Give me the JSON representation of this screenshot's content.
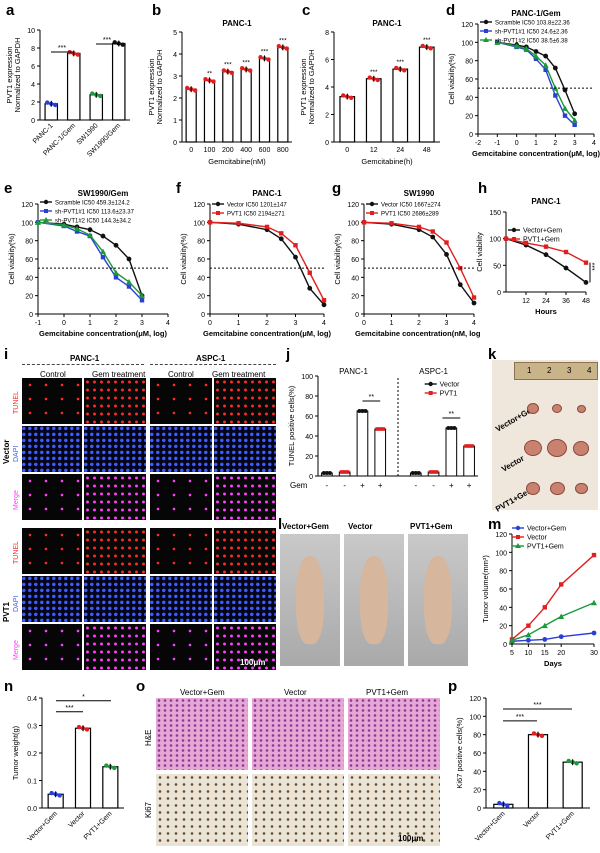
{
  "panels": {
    "a": {
      "label": "a",
      "ylabel": "PVT1 expression\nNormalized to GAPDH",
      "yticks": [
        "0",
        "2",
        "4",
        "6",
        "8",
        "10"
      ],
      "categories": [
        "PANC-1",
        "PANC-1/Gem",
        "SW1990",
        "SW1990/Gem"
      ],
      "sig": [
        "***",
        "***"
      ]
    },
    "b": {
      "label": "b",
      "title": "PANC-1",
      "ylabel": "PVT1 expression\nNormalized to GAPDH",
      "xlabel": "Gemcitabine(nM)",
      "yticks": [
        "0",
        "1",
        "2",
        "3",
        "4",
        "5"
      ],
      "categories": [
        "0",
        "100",
        "200",
        "400",
        "600",
        "800"
      ],
      "sig": [
        "**",
        "***",
        "***",
        "***",
        "***"
      ]
    },
    "c": {
      "label": "c",
      "title": "PANC-1",
      "ylabel": "PVT1 expression\nNormalized to GAPDH",
      "xlabel": "Gemcitabine(h)",
      "yticks": [
        "0",
        "2",
        "4",
        "6",
        "8"
      ],
      "categories": [
        "0",
        "12",
        "24",
        "48"
      ],
      "sig": [
        "***",
        "***",
        "***"
      ]
    },
    "d": {
      "label": "d",
      "title": "PANC-1/Gem",
      "ylabel": "Cell viability(%)",
      "xlabel": "Gemcitabine concentration(μM, log)",
      "yticks": [
        "0",
        "20",
        "40",
        "60",
        "80",
        "100",
        "120"
      ],
      "xticks": [
        "-2",
        "-1",
        "0",
        "1",
        "2",
        "3",
        "4"
      ],
      "legend": [
        "Scramble  IC50 103.8±22.36",
        "sh-PVT1#1 IC50 24.6±2.36",
        "sh-PVT1#2 IC50 38.5±6.38"
      ]
    },
    "e": {
      "label": "e",
      "title": "SW1990/Gem",
      "ylabel": "Cell viability(%)",
      "xlabel": "Gemcitabine concentration(μM, log)",
      "yticks": [
        "0",
        "20",
        "40",
        "60",
        "80",
        "100",
        "120"
      ],
      "xticks": [
        "-1",
        "0",
        "1",
        "2",
        "3",
        "4"
      ],
      "legend": [
        "Scramble  IC50 459.3±124.2",
        "sh-PVT1#1 IC50 113.6±23.37",
        "sh-PVT1#2 IC50 144.3±34.2"
      ]
    },
    "f": {
      "label": "f",
      "title": "PANC-1",
      "ylabel": "Cell viability(%)",
      "xlabel": "Gemcitabine concentration(μM, log)",
      "yticks": [
        "0",
        "20",
        "40",
        "60",
        "80",
        "100",
        "120"
      ],
      "xticks": [
        "0",
        "1",
        "2",
        "3",
        "4"
      ],
      "legend": [
        "Vector  IC50 1201±147",
        "PVT1    IC50 2194±271"
      ]
    },
    "g": {
      "label": "g",
      "title": "SW1990",
      "ylabel": "Cell viability(%)",
      "xlabel": "Gemcitabine concentration(nM, log)",
      "yticks": [
        "0",
        "20",
        "40",
        "60",
        "80",
        "100",
        "120"
      ],
      "xticks": [
        "0",
        "1",
        "2",
        "3",
        "4"
      ],
      "legend": [
        "Vector  IC50 1667±274",
        "PVT1    IC50 2686±289"
      ]
    },
    "h": {
      "label": "h",
      "title": "PANC-1",
      "ylabel": "Cell viability",
      "xlabel": "Hours",
      "yticks": [
        "0",
        "50",
        "100",
        "150"
      ],
      "xticks": [
        "12",
        "24",
        "36",
        "48"
      ],
      "legend": [
        "Vector+Gem",
        "PVT1+Gem"
      ],
      "sig": "***"
    },
    "i": {
      "label": "i",
      "groups": [
        "PANC-1",
        "ASPC-1"
      ],
      "cols": [
        "Control",
        "Gem treatment",
        "Control",
        "Gem treatment"
      ],
      "rowgroups": [
        "Vector",
        "PVT1"
      ],
      "stains": [
        "TUNEL",
        "DAPI",
        "Merge"
      ],
      "scale": "100μm"
    },
    "j": {
      "label": "j",
      "groups": [
        "PANC-1",
        "ASPC-1"
      ],
      "ylabel": "TUNEL positive cells(%)",
      "yticks": [
        "0",
        "20",
        "40",
        "60",
        "80",
        "100"
      ],
      "legend": [
        "Vector",
        "PVT1"
      ],
      "gem_row_label": "Gem",
      "gem": [
        "-",
        "-",
        "+",
        "+",
        "-",
        "-",
        "+",
        "+"
      ],
      "sig": [
        "**",
        "**"
      ]
    },
    "k": {
      "label": "k",
      "rows": [
        "Vector+Gem",
        "Vector",
        "PVT1+Gem"
      ],
      "ruler": [
        "1",
        "2",
        "3",
        "4"
      ]
    },
    "l": {
      "label": "l",
      "cols": [
        "Vector+Gem",
        "Vector",
        "PVT1+Gem"
      ]
    },
    "m": {
      "label": "m",
      "ylabel": "Tumor volume(mm³)",
      "xlabel": "Days",
      "yticks": [
        "0",
        "20",
        "40",
        "60",
        "80",
        "100",
        "120"
      ],
      "xticks": [
        "5",
        "10",
        "15",
        "20",
        "30"
      ],
      "legend": [
        "Vector+Gem",
        "Vector",
        "PVT1+Gem"
      ]
    },
    "n": {
      "label": "n",
      "ylabel": "Tumor weight(g)",
      "yticks": [
        "0.0",
        "0.1",
        "0.2",
        "0.3",
        "0.4"
      ],
      "categories": [
        "Vector+Gem",
        "Vector",
        "PVT1+Gem"
      ],
      "sig": [
        "***",
        "*"
      ]
    },
    "o": {
      "label": "o",
      "cols": [
        "Vector+Gem",
        "Vector",
        "PVT1+Gem"
      ],
      "rows": [
        "H&E",
        "Ki67"
      ],
      "scale": "100μm"
    },
    "p": {
      "label": "p",
      "ylabel": "Ki67 positive cells(%)",
      "yticks": [
        "0",
        "20",
        "40",
        "60",
        "80",
        "100",
        "120"
      ],
      "categories": [
        "Vector+Gem",
        "Vector",
        "PVT1+Gem"
      ],
      "sig": [
        "***",
        "***"
      ]
    }
  },
  "colors": {
    "black": "#111111",
    "red": "#e02020",
    "blue": "#2a3fd6",
    "green": "#1a9a3a",
    "grey": "#888888"
  },
  "chart_data": [
    {
      "type": "bar",
      "panel": "a",
      "categories": [
        "PANC-1",
        "PANC-1/Gem",
        "SW1990",
        "SW1990/Gem"
      ],
      "values": [
        1.8,
        7.4,
        2.8,
        8.5
      ],
      "ylim": [
        0,
        10
      ]
    },
    {
      "type": "bar",
      "panel": "b",
      "categories": [
        "0",
        "100",
        "200",
        "400",
        "600",
        "800"
      ],
      "values": [
        2.4,
        2.8,
        3.2,
        3.3,
        3.8,
        4.3
      ],
      "ylim": [
        0,
        5
      ]
    },
    {
      "type": "bar",
      "panel": "c",
      "categories": [
        "0",
        "12",
        "24",
        "48"
      ],
      "values": [
        3.3,
        4.6,
        5.3,
        6.9
      ],
      "ylim": [
        0,
        8
      ]
    },
    {
      "type": "line",
      "panel": "d",
      "x": [
        -1,
        0,
        0.5,
        1,
        1.5,
        2,
        2.5,
        3
      ],
      "series": [
        {
          "name": "Scramble",
          "values": [
            100,
            97,
            95,
            90,
            85,
            72,
            48,
            22
          ]
        },
        {
          "name": "sh-PVT1#1",
          "values": [
            100,
            95,
            92,
            82,
            70,
            42,
            20,
            10
          ]
        },
        {
          "name": "sh-PVT1#2",
          "values": [
            100,
            96,
            93,
            85,
            75,
            50,
            28,
            15
          ]
        }
      ],
      "ylim": [
        0,
        120
      ]
    },
    {
      "type": "line",
      "panel": "e",
      "x": [
        -1,
        0,
        0.5,
        1,
        1.5,
        2,
        2.5,
        3
      ],
      "series": [
        {
          "name": "Scramble",
          "values": [
            100,
            98,
            95,
            92,
            85,
            75,
            60,
            20
          ]
        },
        {
          "name": "sh-PVT1#1",
          "values": [
            100,
            96,
            90,
            85,
            62,
            40,
            30,
            15
          ]
        },
        {
          "name": "sh-PVT1#2",
          "values": [
            100,
            97,
            93,
            86,
            68,
            45,
            35,
            20
          ]
        }
      ],
      "ylim": [
        0,
        120
      ]
    },
    {
      "type": "line",
      "panel": "f",
      "x": [
        0,
        1,
        2,
        2.5,
        3,
        3.5,
        4
      ],
      "series": [
        {
          "name": "Vector",
          "values": [
            100,
            98,
            92,
            82,
            62,
            28,
            10
          ]
        },
        {
          "name": "PVT1",
          "values": [
            100,
            99,
            95,
            88,
            75,
            45,
            15
          ]
        }
      ],
      "ylim": [
        0,
        120
      ]
    },
    {
      "type": "line",
      "panel": "g",
      "x": [
        0,
        1,
        2,
        2.5,
        3,
        3.5,
        4
      ],
      "series": [
        {
          "name": "Vector",
          "values": [
            100,
            98,
            92,
            84,
            65,
            32,
            12
          ]
        },
        {
          "name": "PVT1",
          "values": [
            100,
            99,
            95,
            90,
            78,
            50,
            18
          ]
        }
      ],
      "ylim": [
        0,
        120
      ]
    },
    {
      "type": "line",
      "panel": "h",
      "x": [
        0,
        12,
        24,
        36,
        48
      ],
      "series": [
        {
          "name": "Vector+Gem",
          "values": [
            100,
            88,
            70,
            45,
            18
          ]
        },
        {
          "name": "PVT1+Gem",
          "values": [
            100,
            92,
            85,
            75,
            55
          ]
        }
      ],
      "ylim": [
        0,
        150
      ]
    },
    {
      "type": "bar",
      "panel": "j",
      "categories": [
        "1",
        "2",
        "3",
        "4",
        "5",
        "6",
        "7",
        "8"
      ],
      "values": [
        3,
        4,
        65,
        47,
        3,
        4,
        48,
        30
      ],
      "ylim": [
        0,
        100
      ]
    },
    {
      "type": "line",
      "panel": "m",
      "x": [
        5,
        10,
        15,
        20,
        30
      ],
      "series": [
        {
          "name": "Vector+Gem",
          "values": [
            3,
            4,
            5,
            8,
            12
          ]
        },
        {
          "name": "Vector",
          "values": [
            5,
            20,
            40,
            65,
            97
          ]
        },
        {
          "name": "PVT1+Gem",
          "values": [
            4,
            10,
            20,
            30,
            45
          ]
        }
      ],
      "ylim": [
        0,
        120
      ]
    },
    {
      "type": "bar",
      "panel": "n",
      "categories": [
        "Vector+Gem",
        "Vector",
        "PVT1+Gem"
      ],
      "values": [
        0.05,
        0.29,
        0.15
      ],
      "ylim": [
        0,
        0.4
      ]
    },
    {
      "type": "bar",
      "panel": "p",
      "categories": [
        "Vector+Gem",
        "Vector",
        "PVT1+Gem"
      ],
      "values": [
        4,
        80,
        50
      ],
      "ylim": [
        0,
        120
      ]
    }
  ]
}
